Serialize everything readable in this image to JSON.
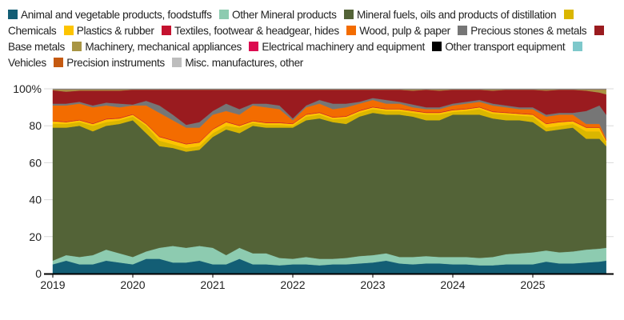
{
  "chart_data": {
    "type": "area",
    "stacked": true,
    "title": "",
    "xlabel": "",
    "ylabel": "",
    "ylim": [
      0,
      100
    ],
    "y_ticks": [
      "0",
      "20",
      "40",
      "60",
      "80",
      "100%"
    ],
    "x_ticks": [
      "2019",
      "2020",
      "2021",
      "2022",
      "2023",
      "2024",
      "2025"
    ],
    "grid": "horizontal",
    "legend_position": "top",
    "x": [
      "2019-01",
      "2019-03",
      "2019-05",
      "2019-07",
      "2019-09",
      "2019-11",
      "2020-01",
      "2020-03",
      "2020-05",
      "2020-07",
      "2020-09",
      "2020-11",
      "2021-01",
      "2021-03",
      "2021-05",
      "2021-07",
      "2021-09",
      "2021-11",
      "2022-01",
      "2022-03",
      "2022-05",
      "2022-07",
      "2022-09",
      "2022-11",
      "2023-01",
      "2023-03",
      "2023-05",
      "2023-07",
      "2023-09",
      "2023-11",
      "2024-01",
      "2024-03",
      "2024-05",
      "2024-07",
      "2024-09",
      "2024-11",
      "2025-01",
      "2025-03",
      "2025-05",
      "2025-07",
      "2025-09",
      "2025-11",
      "2025-12"
    ],
    "series": [
      {
        "name": "Animal and vegetable products, foodstuffs",
        "color": "#135e75",
        "values": [
          5,
          7,
          5,
          5,
          7,
          6,
          5,
          8,
          8,
          6,
          6,
          7,
          5,
          5,
          8,
          5,
          5,
          4.5,
          5,
          5,
          4.5,
          5,
          5,
          5.5,
          6,
          7,
          5.5,
          5,
          5.5,
          5.5,
          5,
          5,
          4.5,
          4.5,
          5,
          5,
          5,
          6.5,
          5.5,
          5.5,
          6,
          6.5,
          7
        ]
      },
      {
        "name": "Other Mineral products",
        "color": "#8dcbb0",
        "values": [
          2,
          3,
          4,
          5,
          6,
          5,
          4,
          4,
          6,
          9,
          8,
          8,
          9,
          5,
          6,
          6,
          6,
          4,
          3,
          4,
          3.5,
          3,
          3.5,
          4,
          4,
          4,
          3.5,
          4,
          4,
          3.5,
          4,
          4,
          4,
          4.5,
          5.5,
          6,
          6.5,
          6,
          6,
          6.5,
          7,
          7,
          7
        ]
      },
      {
        "name": "Mineral fuels, oils and products of distillation",
        "color": "#536337",
        "values": [
          72,
          69,
          71,
          67,
          67,
          70,
          74,
          64,
          55,
          53,
          52,
          52,
          60,
          68,
          62,
          69,
          68,
          70.5,
          71,
          74,
          76,
          74,
          72.5,
          75.5,
          77,
          75,
          77,
          76,
          73.5,
          74,
          77,
          77,
          77.5,
          75,
          72.5,
          72,
          70.5,
          64.5,
          66.5,
          67,
          60,
          59.5,
          55
        ]
      },
      {
        "name": "Chemicals",
        "color": "#dab600",
        "values": [
          2,
          2,
          2,
          3,
          2,
          2,
          2,
          4,
          3,
          2,
          2,
          2,
          2,
          2,
          3,
          1.5,
          1.5,
          1.5,
          1,
          2,
          2,
          1.5,
          3,
          2,
          2,
          2,
          2,
          2,
          3,
          3,
          1.5,
          2,
          3,
          2.5,
          3,
          2.5,
          3,
          2,
          2,
          2,
          4,
          4,
          2
        ]
      },
      {
        "name": "Plastics & rubber",
        "color": "#fdc400",
        "values": [
          1.5,
          1,
          1,
          1,
          1.5,
          1,
          1,
          1,
          2,
          2,
          2,
          2,
          2,
          2,
          1,
          1,
          1,
          1,
          1,
          1,
          1,
          1,
          1,
          1,
          1,
          1,
          1,
          1,
          1,
          1,
          1,
          1,
          1,
          1,
          1,
          1,
          1,
          2,
          2,
          1.5,
          2,
          2,
          1
        ]
      },
      {
        "name": "Textiles, footwear & headgear, hides",
        "color": "#c4122f",
        "values": [
          0.3,
          0.3,
          0.3,
          0.3,
          0.3,
          0.3,
          0.3,
          0.3,
          0.3,
          0.3,
          0.3,
          0.3,
          0.3,
          0.3,
          0.3,
          0.3,
          0.3,
          0.3,
          0.3,
          0.3,
          0.3,
          0.3,
          0.3,
          0.3,
          0.3,
          0.3,
          0.3,
          0.3,
          0.3,
          0.3,
          0.3,
          0.3,
          0.3,
          0.3,
          0.3,
          0.3,
          0.3,
          0.3,
          0.3,
          0.3,
          0.3,
          0.3,
          0.3
        ]
      },
      {
        "name": "Wood, pulp & paper",
        "color": "#f36c00",
        "values": [
          8.2,
          8.7,
          8.7,
          8.7,
          7.2,
          5.7,
          4.7,
          9.7,
          12.7,
          10.7,
          8.7,
          7.7,
          7.7,
          5.7,
          5.7,
          8.2,
          8.2,
          7.2,
          1.7,
          3.7,
          4.7,
          4.2,
          4.7,
          3.7,
          3.7,
          2.7,
          2.7,
          1.7,
          1.7,
          1.7,
          2.2,
          2.7,
          2.7,
          3.2,
          2.7,
          2.2,
          2.7,
          3.7,
          3.7,
          3.2,
          1.7,
          1.7,
          0.7
        ]
      },
      {
        "name": "Precious stones & metals",
        "color": "#767676",
        "values": [
          1,
          1,
          1,
          1,
          1.5,
          2,
          0.5,
          2.5,
          4,
          3,
          1.5,
          3,
          2,
          4,
          3,
          1,
          2,
          2,
          1,
          1,
          2,
          3,
          2,
          1,
          1,
          2,
          1,
          1.5,
          1,
          1,
          1,
          1,
          1,
          1,
          1,
          1,
          1,
          1,
          1,
          1,
          7,
          10,
          13
        ]
      },
      {
        "name": "Base metals",
        "color": "#9a1b1f",
        "values": [
          7.2,
          6.5,
          6,
          8,
          6.5,
          7,
          8,
          6,
          8.5,
          13.5,
          19,
          17.5,
          11.5,
          7.5,
          10.5,
          7.5,
          7.5,
          8.5,
          15.5,
          8.5,
          5.5,
          7.5,
          7.5,
          6.5,
          4.5,
          5.5,
          6.5,
          7.5,
          9.5,
          9,
          7.5,
          6.5,
          5.5,
          7,
          8.5,
          9.5,
          9.5,
          13,
          12.5,
          12.5,
          11,
          7,
          11
        ]
      },
      {
        "name": "Machinery, mechanical appliances",
        "color": "#a89544",
        "values": [
          0.4,
          1.1,
          0.6,
          0.6,
          0.6,
          0.6,
          0.1,
          0.1,
          0.1,
          0.1,
          0.1,
          0.1,
          0.1,
          0.1,
          0.1,
          0.1,
          0.1,
          0.1,
          0.1,
          0.1,
          0.1,
          0.1,
          0.1,
          0.1,
          0.1,
          0.1,
          0.1,
          0.6,
          0.1,
          0.6,
          0.1,
          0.1,
          0.1,
          0.6,
          0.1,
          0.1,
          0.1,
          0.6,
          0.1,
          0.1,
          0.6,
          1.6,
          2.6
        ]
      },
      {
        "name": "Electrical machinery and equipment",
        "color": "#dc0a4f",
        "values": [
          0.1,
          0.1,
          0.1,
          0.1,
          0.1,
          0.1,
          0.1,
          0.1,
          0.1,
          0.1,
          0.1,
          0.1,
          0.1,
          0.1,
          0.1,
          0.1,
          0.1,
          0.1,
          0.1,
          0.1,
          0.1,
          0.1,
          0.1,
          0.1,
          0.1,
          0.1,
          0.1,
          0.1,
          0.1,
          0.1,
          0.1,
          0.1,
          0.1,
          0.1,
          0.1,
          0.1,
          0.1,
          0.1,
          0.1,
          0.1,
          0.1,
          0.1,
          0.1
        ]
      },
      {
        "name": "Other transport equipment",
        "color": "#000000",
        "values": [
          0.1,
          0.1,
          0.1,
          0.1,
          0.1,
          0.1,
          0.1,
          0.1,
          0.1,
          0.1,
          0.1,
          0.1,
          0.1,
          0.1,
          0.1,
          0.1,
          0.1,
          0.1,
          0.1,
          0.1,
          0.1,
          0.1,
          0.1,
          0.1,
          0.1,
          0.1,
          0.1,
          0.1,
          0.1,
          0.1,
          0.1,
          0.1,
          0.1,
          0.1,
          0.1,
          0.1,
          0.1,
          0.1,
          0.1,
          0.1,
          0.1,
          0.1,
          0.1
        ]
      },
      {
        "name": "Vehicles",
        "color": "#7ec8cb",
        "values": [
          0.05,
          0.05,
          0.05,
          0.05,
          0.05,
          0.05,
          0.05,
          0.05,
          0.05,
          0.05,
          0.05,
          0.05,
          0.05,
          0.05,
          0.05,
          0.05,
          0.05,
          0.05,
          0.05,
          0.05,
          0.05,
          0.05,
          0.05,
          0.05,
          0.05,
          0.05,
          0.05,
          0.05,
          0.05,
          0.05,
          0.05,
          0.05,
          0.05,
          0.05,
          0.05,
          0.05,
          0.05,
          0.05,
          0.05,
          0.05,
          0.05,
          0.05,
          0.05
        ]
      },
      {
        "name": "Precision instruments",
        "color": "#c55a11",
        "values": [
          0.05,
          0.05,
          0.05,
          0.05,
          0.05,
          0.05,
          0.05,
          0.05,
          0.05,
          0.05,
          0.05,
          0.05,
          0.05,
          0.05,
          0.05,
          0.05,
          0.05,
          0.05,
          0.05,
          0.05,
          0.05,
          0.05,
          0.05,
          0.05,
          0.05,
          0.05,
          0.05,
          0.05,
          0.05,
          0.05,
          0.05,
          0.05,
          0.05,
          0.05,
          0.05,
          0.05,
          0.05,
          0.05,
          0.05,
          0.05,
          0.05,
          0.05,
          0.05
        ]
      },
      {
        "name": "Misc. manufactures, other",
        "color": "#bdbdbd",
        "values": [
          0.1,
          0.1,
          0.1,
          0.1,
          0.1,
          0.1,
          0.1,
          0.1,
          0.1,
          0.1,
          0.1,
          0.1,
          0.1,
          0.1,
          0.1,
          0.1,
          0.1,
          0.1,
          0.1,
          0.1,
          0.1,
          0.1,
          0.1,
          0.1,
          0.1,
          0.1,
          0.1,
          0.1,
          0.1,
          0.1,
          0.1,
          0.1,
          0.1,
          0.1,
          0.1,
          0.1,
          0.1,
          0.1,
          0.1,
          0.1,
          0.1,
          0.1,
          0.1
        ]
      }
    ]
  }
}
